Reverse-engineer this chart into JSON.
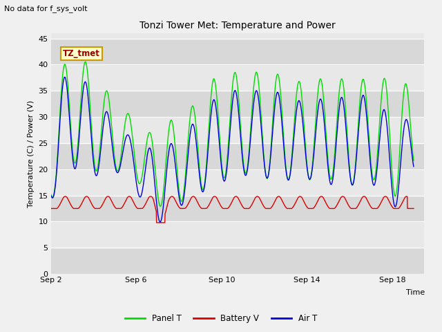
{
  "title": "Tonzi Tower Met: Temperature and Power",
  "top_left_note": "No data for f_sys_volt",
  "xlabel": "Time",
  "ylabel": "Temperature (C) / Power (V)",
  "ylim": [
    0,
    46
  ],
  "yticks": [
    0,
    5,
    10,
    15,
    20,
    25,
    30,
    35,
    40,
    45
  ],
  "xtick_labels": [
    "Sep 2",
    "Sep 6",
    "Sep 10",
    "Sep 14",
    "Sep 18"
  ],
  "xtick_pos": [
    0,
    4,
    8,
    12,
    16
  ],
  "xlim": [
    0,
    17.5
  ],
  "legend_labels": [
    "Panel T",
    "Battery V",
    "Air T"
  ],
  "panel_color": "#00dd00",
  "battery_color": "#dd0000",
  "air_color": "#0000dd",
  "annotation_text": "TZ_tmet",
  "annotation_fg": "#990000",
  "annotation_bg": "#ffffcc",
  "annotation_border": "#cc9900",
  "fig_bg": "#f0f0f0",
  "plot_bg": "#e8e8e8",
  "band_dark": "#d8d8d8",
  "band_light": "#e8e8e8",
  "panel_peaks": [
    27,
    42,
    39,
    34,
    30,
    27,
    29.5,
    32,
    37,
    38.5,
    38.5,
    38.5,
    37,
    37,
    37.5,
    37,
    37.5,
    37,
    36
  ],
  "panel_troughs": [
    13,
    21,
    20,
    19.5,
    19,
    14,
    13,
    15,
    17,
    19,
    19,
    18,
    18,
    18,
    18,
    17,
    18,
    15,
    19
  ],
  "air_peaks": [
    26,
    39,
    35,
    30,
    26,
    24,
    25,
    28.5,
    33,
    35,
    35,
    35,
    33.5,
    33,
    34,
    33.5,
    34,
    29,
    34
  ],
  "air_troughs": [
    13,
    20,
    19,
    19,
    18,
    10,
    12,
    14,
    17,
    18,
    19,
    18,
    18,
    18,
    17,
    17,
    17,
    13,
    18
  ],
  "bat_base": 12.5,
  "bat_bump": 2.5,
  "bat_dip_day": 5.1,
  "bat_dip_val": 9.8
}
